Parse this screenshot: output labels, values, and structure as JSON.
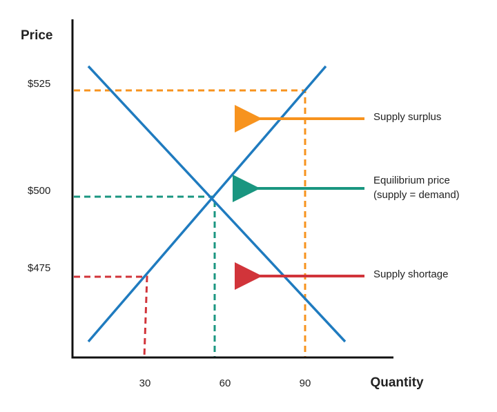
{
  "axes": {
    "y_title": "Price",
    "x_title": "Quantity",
    "y_labels": [
      "$525",
      "$500",
      "$475"
    ],
    "x_labels": [
      "30",
      "60",
      "90"
    ]
  },
  "annotations": {
    "surplus": "Supply surplus",
    "equilibrium": [
      "Equilibrium price",
      "(supply = demand)"
    ],
    "shortage": "Supply shortage"
  }
}
